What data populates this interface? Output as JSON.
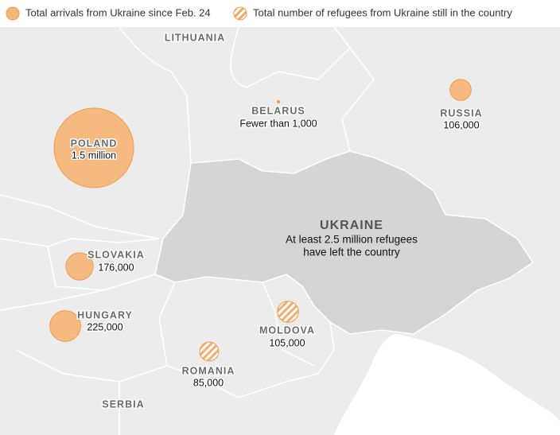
{
  "legend": [
    {
      "label": "Total arrivals from Ukraine since Feb. 24",
      "style": "solid"
    },
    {
      "label": "Total number of refugees from Ukraine still in the country",
      "style": "hatched"
    }
  ],
  "colors": {
    "fill": "#f7b575",
    "stroke": "#ee9b4a"
  },
  "countries": [
    {
      "name": "LITHUANIA"
    },
    {
      "name": "BELARUS",
      "label": "Fewer than 1,000"
    },
    {
      "name": "RUSSIA",
      "label": "106,000",
      "value": 106000,
      "style": "solid"
    },
    {
      "name": "POLAND",
      "label": "1.5 million",
      "value": 1500000,
      "style": "solid"
    },
    {
      "name": "SLOVAKIA",
      "label": "176,000",
      "value": 176000,
      "style": "solid"
    },
    {
      "name": "HUNGARY",
      "label": "225,000",
      "value": 225000,
      "style": "solid"
    },
    {
      "name": "MOLDOVA",
      "label": "105,000",
      "value": 105000,
      "style": "hatched"
    },
    {
      "name": "ROMANIA",
      "label": "85,000",
      "value": 85000,
      "style": "hatched"
    },
    {
      "name": "SERBIA"
    }
  ],
  "ukraine": {
    "name": "UKRAINE",
    "note": [
      "At least 2.5 million refugees",
      "have left the country"
    ]
  }
}
